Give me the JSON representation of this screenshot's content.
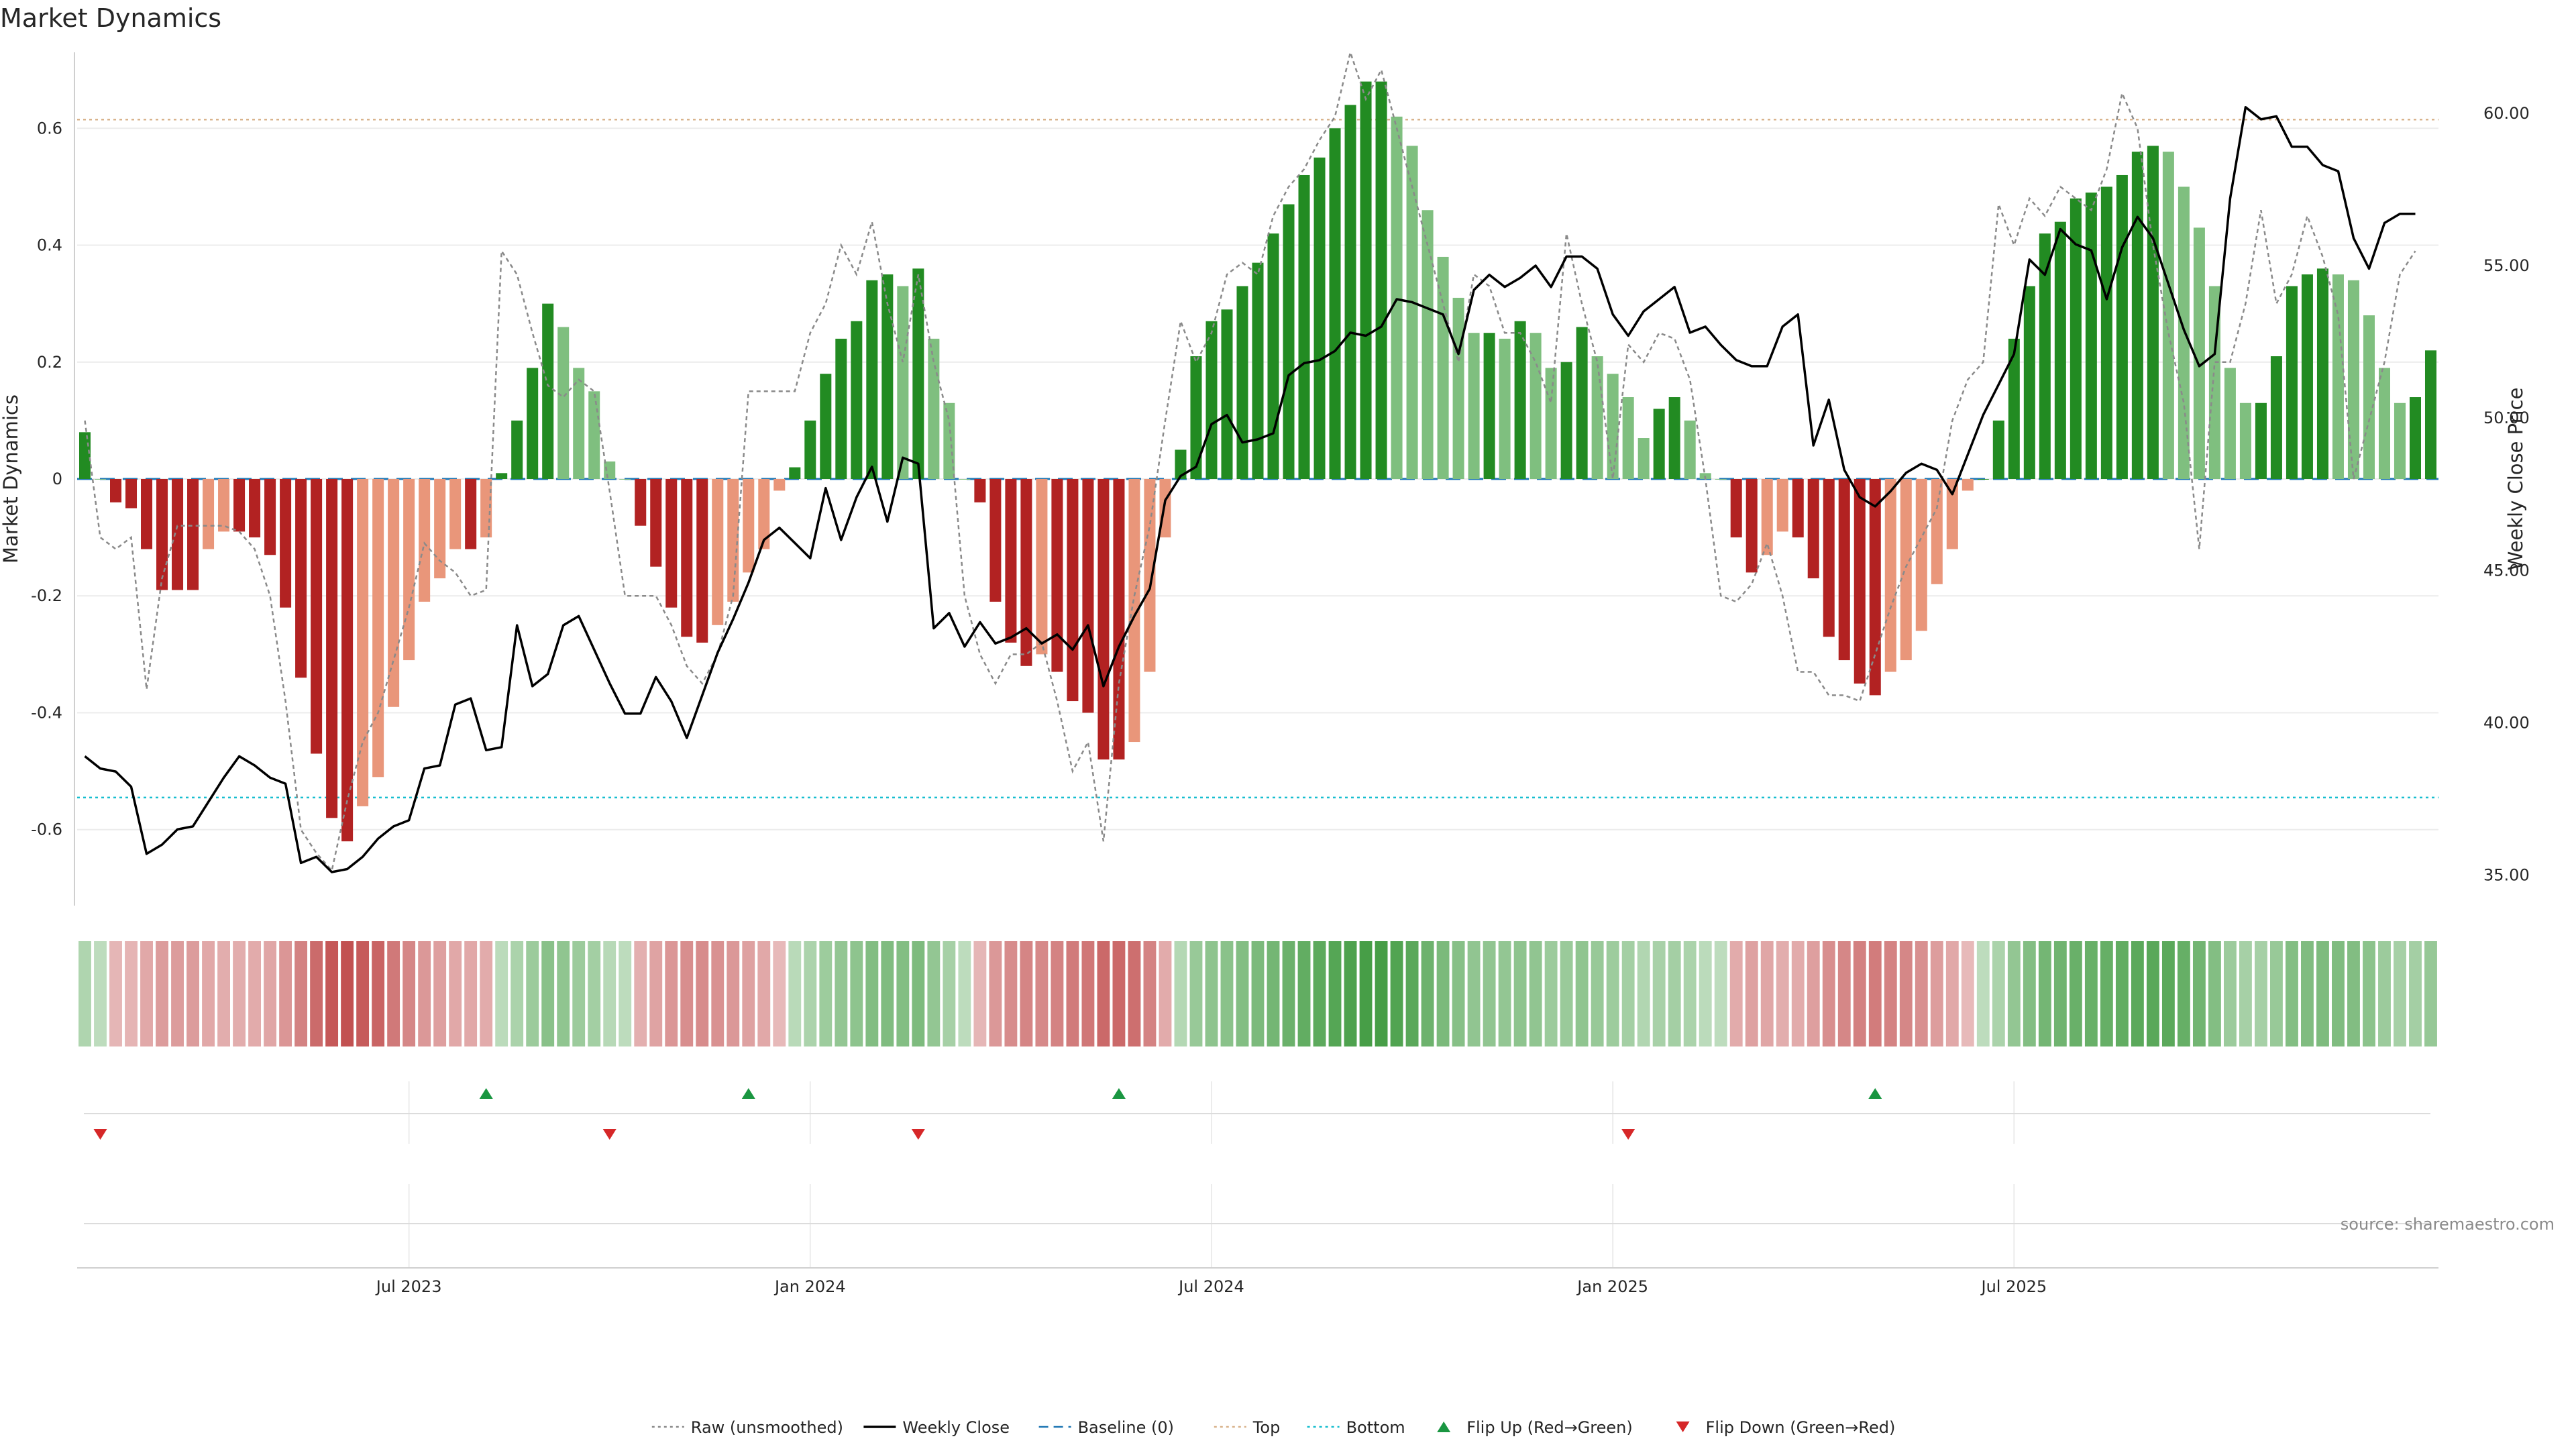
{
  "title": "Market Dynamics",
  "source": "source: sharemaestro.com",
  "left_axis_label": "Market Dynamics",
  "right_axis_label": "Weekly Close Price",
  "legend": [
    {
      "label": "Raw (unsmoothed)",
      "style": "dotted",
      "color": "#8a8a8a"
    },
    {
      "label": "Weekly Close",
      "style": "solid",
      "color": "#000000"
    },
    {
      "label": "Baseline (0)",
      "style": "dashed",
      "color": "#1f77b4"
    },
    {
      "label": "Top",
      "style": "dotted",
      "color": "#d9b38c"
    },
    {
      "label": "Bottom",
      "style": "dotted",
      "color": "#17becf"
    },
    {
      "label": "Flip Up (Red→Green)",
      "style": "triangle-up",
      "color": "#1a9641"
    },
    {
      "label": "Flip Down (Green→Red)",
      "style": "triangle-down",
      "color": "#d62728"
    }
  ],
  "colors": {
    "strong_up": "#228b22",
    "weak_up": "#7fbf7f",
    "strong_down": "#b22222",
    "weak_down": "#e9967a",
    "raw": "#8a8a8a",
    "close": "#000000",
    "baseline": "#1f77b4",
    "top": "#d9b38c",
    "bottom": "#17becf",
    "flip_up": "#1a9641",
    "flip_down": "#d62728"
  },
  "chart_data": {
    "type": "bar",
    "x_axis": {
      "tick_labels": [
        "Jul 2023",
        "Jan 2024",
        "Jul 2024",
        "Jan 2025",
        "Jul 2025"
      ],
      "tick_weeks": [
        21,
        47,
        73,
        99,
        125
      ]
    },
    "left_axis": {
      "ylim": [
        -0.73,
        0.73
      ],
      "ticks": [
        -0.6,
        -0.4,
        -0.2,
        0,
        0.2,
        0.4,
        0.6
      ],
      "tick_labels": [
        "-0.6",
        "-0.4",
        "-0.2",
        "0",
        "0.2",
        "0.4",
        "0.6"
      ]
    },
    "right_axis": {
      "ylim": [
        34.0,
        62.0
      ],
      "ticks": [
        35,
        40,
        45,
        50,
        55,
        60
      ],
      "tick_labels": [
        "35.00",
        "40.00",
        "45.00",
        "50.00",
        "55.00",
        "60.00"
      ]
    },
    "thresholds": {
      "baseline": 0,
      "top": 0.615,
      "bottom": -0.545
    },
    "series": [
      {
        "name": "Market Dynamics",
        "values": [
          0.08,
          0.0,
          -0.04,
          -0.05,
          -0.12,
          -0.19,
          -0.19,
          -0.19,
          -0.12,
          -0.09,
          -0.09,
          -0.1,
          -0.13,
          -0.22,
          -0.34,
          -0.47,
          -0.58,
          -0.62,
          -0.56,
          -0.51,
          -0.39,
          -0.31,
          -0.21,
          -0.17,
          -0.12,
          -0.12,
          -0.1,
          0.01,
          0.1,
          0.19,
          0.3,
          0.26,
          0.19,
          0.15,
          0.03,
          0.0,
          -0.08,
          -0.15,
          -0.22,
          -0.27,
          -0.28,
          -0.25,
          -0.21,
          -0.16,
          -0.12,
          -0.02,
          0.02,
          0.1,
          0.18,
          0.24,
          0.27,
          0.34,
          0.35,
          0.33,
          0.36,
          0.24,
          0.13,
          0.0,
          -0.04,
          -0.21,
          -0.28,
          -0.32,
          -0.3,
          -0.33,
          -0.38,
          -0.4,
          -0.48,
          -0.48,
          -0.45,
          -0.33,
          -0.1,
          0.05,
          0.21,
          0.27,
          0.29,
          0.33,
          0.37,
          0.42,
          0.47,
          0.52,
          0.55,
          0.6,
          0.64,
          0.68,
          0.68,
          0.62,
          0.57,
          0.46,
          0.38,
          0.31,
          0.25,
          0.25,
          0.24,
          0.27,
          0.25,
          0.19,
          0.2,
          0.26,
          0.21,
          0.18,
          0.14,
          0.07,
          0.12,
          0.14,
          0.1,
          0.01,
          0.0,
          -0.1,
          -0.16,
          -0.13,
          -0.09,
          -0.1,
          -0.17,
          -0.27,
          -0.31,
          -0.35,
          -0.37,
          -0.33,
          -0.31,
          -0.26,
          -0.18,
          -0.12,
          -0.02,
          0.0,
          0.1,
          0.24,
          0.33,
          0.42,
          0.44,
          0.48,
          0.49,
          0.5,
          0.52,
          0.56,
          0.57,
          0.56,
          0.5,
          0.43,
          0.33,
          0.19,
          0.13,
          0.13,
          0.21,
          0.33,
          0.35,
          0.36,
          0.35,
          0.34,
          0.28,
          0.19,
          0.13,
          0.14,
          0.22
        ]
      },
      {
        "name": "Raw (unsmoothed)",
        "values": [
          0.1,
          -0.1,
          -0.12,
          -0.1,
          -0.36,
          -0.17,
          -0.08,
          -0.08,
          -0.08,
          -0.08,
          -0.09,
          -0.12,
          -0.2,
          -0.38,
          -0.6,
          -0.64,
          -0.67,
          -0.55,
          -0.45,
          -0.4,
          -0.31,
          -0.22,
          -0.11,
          -0.14,
          -0.16,
          -0.2,
          -0.19,
          0.39,
          0.35,
          0.25,
          0.16,
          0.14,
          0.17,
          0.15,
          -0.02,
          -0.2,
          -0.2,
          -0.2,
          -0.25,
          -0.32,
          -0.35,
          -0.3,
          -0.2,
          0.15,
          0.15,
          0.15,
          0.15,
          0.25,
          0.3,
          0.4,
          0.35,
          0.44,
          0.3,
          0.2,
          0.35,
          0.2,
          0.1,
          -0.2,
          -0.3,
          -0.35,
          -0.3,
          -0.3,
          -0.28,
          -0.38,
          -0.5,
          -0.45,
          -0.62,
          -0.35,
          -0.2,
          -0.08,
          0.1,
          0.27,
          0.2,
          0.25,
          0.35,
          0.37,
          0.35,
          0.45,
          0.5,
          0.53,
          0.58,
          0.62,
          0.73,
          0.65,
          0.7,
          0.6,
          0.5,
          0.4,
          0.3,
          0.2,
          0.35,
          0.33,
          0.25,
          0.25,
          0.2,
          0.13,
          0.42,
          0.3,
          0.2,
          0.0,
          0.23,
          0.2,
          0.25,
          0.24,
          0.17,
          0.0,
          -0.2,
          -0.21,
          -0.18,
          -0.11,
          -0.2,
          -0.33,
          -0.33,
          -0.37,
          -0.37,
          -0.38,
          -0.3,
          -0.22,
          -0.15,
          -0.1,
          -0.05,
          0.1,
          0.17,
          0.2,
          0.47,
          0.4,
          0.48,
          0.45,
          0.5,
          0.48,
          0.46,
          0.53,
          0.66,
          0.6,
          0.4,
          0.25,
          0.13,
          -0.12,
          0.2,
          0.2,
          0.3,
          0.46,
          0.3,
          0.35,
          0.45,
          0.38,
          0.28,
          0.0,
          0.1,
          0.2,
          0.35,
          0.39
        ]
      },
      {
        "name": "Weekly Close",
        "values": [
          38.9,
          38.5,
          38.4,
          37.9,
          35.7,
          36.0,
          36.5,
          36.6,
          37.4,
          38.2,
          38.9,
          38.6,
          38.2,
          38.0,
          35.4,
          35.6,
          35.1,
          35.2,
          35.6,
          36.2,
          36.6,
          36.8,
          38.5,
          38.6,
          40.6,
          40.8,
          39.1,
          39.2,
          43.2,
          41.2,
          41.6,
          43.2,
          43.5,
          42.4,
          41.3,
          40.3,
          40.3,
          41.5,
          40.7,
          39.5,
          40.9,
          42.3,
          43.4,
          44.6,
          46.0,
          46.4,
          45.9,
          45.4,
          47.7,
          46.0,
          47.4,
          48.4,
          46.6,
          48.7,
          48.5,
          43.1,
          43.6,
          42.5,
          43.3,
          42.6,
          42.8,
          43.1,
          42.6,
          42.9,
          42.4,
          43.2,
          41.2,
          42.5,
          43.5,
          44.4,
          47.3,
          48.1,
          48.4,
          49.8,
          50.1,
          49.2,
          49.3,
          49.5,
          51.4,
          51.8,
          51.9,
          52.2,
          52.8,
          52.7,
          53.0,
          53.9,
          53.8,
          53.6,
          53.4,
          52.1,
          54.2,
          54.7,
          54.3,
          54.6,
          55.0,
          54.3,
          55.3,
          55.3,
          54.9,
          53.4,
          52.7,
          53.5,
          53.9,
          54.3,
          52.8,
          53.0,
          52.4,
          51.9,
          51.7,
          51.7,
          53.0,
          53.4,
          49.1,
          50.6,
          48.3,
          47.4,
          47.1,
          47.6,
          48.2,
          48.5,
          48.3,
          47.5,
          48.8,
          50.1,
          51.1,
          52.1,
          55.2,
          54.7,
          56.2,
          55.7,
          55.5,
          53.9,
          55.6,
          56.6,
          55.9,
          54.4,
          52.9,
          51.7,
          52.1,
          57.2,
          60.2,
          59.8,
          59.9,
          58.9,
          58.9,
          58.3,
          58.1,
          55.9,
          54.9,
          56.4,
          56.7,
          56.7
        ]
      }
    ],
    "heatmap_cells": 147,
    "flips": {
      "up": [
        26,
        43,
        67,
        116
      ],
      "down": [
        1,
        34,
        54,
        100
      ]
    }
  }
}
